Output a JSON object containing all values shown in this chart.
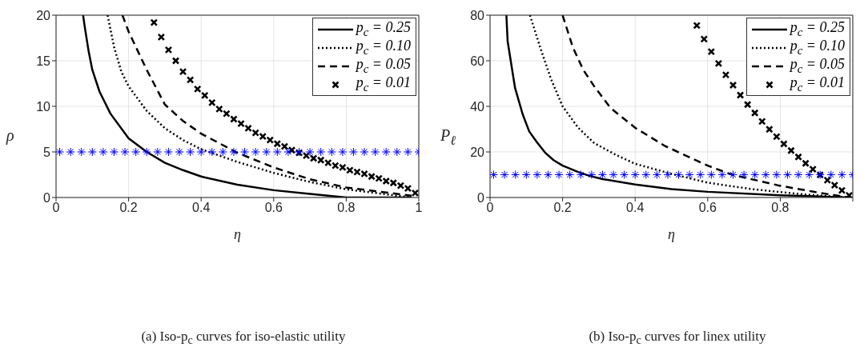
{
  "chart_data": [
    {
      "type": "line",
      "xlabel": "η",
      "ylabel": "ρ",
      "xlim": [
        0,
        1
      ],
      "ylim": [
        0,
        20
      ],
      "xticks": [
        0,
        0.2,
        0.4,
        0.6,
        0.8,
        1
      ],
      "yticks": [
        0,
        5,
        10,
        15,
        20
      ],
      "grid": true,
      "legend": "top right",
      "annotations": [
        "(a) Iso-p$_{c}$ curves for iso-elastic utility"
      ],
      "series": [
        {
          "name": "p$_{c}$ = 0.25",
          "color": "#000000",
          "line_style": "solid",
          "marker": "none",
          "x": [
            0.0745,
            0.08,
            0.09,
            0.1,
            0.12,
            0.15,
            0.2,
            0.25,
            0.3,
            0.35,
            0.4,
            0.5,
            0.6,
            0.7,
            0.8,
            0.98
          ],
          "values": [
            20,
            18.5,
            16,
            14,
            11.6,
            9.2,
            6.5,
            5,
            3.8,
            3,
            2.3,
            1.4,
            0.8,
            0.4,
            0,
            0
          ]
        },
        {
          "name": "p$_{c}$ = 0.10",
          "color": "#000000",
          "line_style": "dotted",
          "marker": "none",
          "x": [
            0.142,
            0.16,
            0.18,
            0.2,
            0.25,
            0.3,
            0.35,
            0.4,
            0.5,
            0.6,
            0.7,
            0.8,
            0.9,
            0.98
          ],
          "values": [
            20,
            16.5,
            13.8,
            12.2,
            9.5,
            7.6,
            6.3,
            5.3,
            3.9,
            2.7,
            1.7,
            0.9,
            0.4,
            0
          ]
        },
        {
          "name": "p$_{c}$ = 0.05",
          "color": "#000000",
          "line_style": "dashed",
          "marker": "none",
          "x": [
            0.183,
            0.2,
            0.25,
            0.3,
            0.35,
            0.4,
            0.5,
            0.6,
            0.7,
            0.8,
            0.9,
            0.98
          ],
          "values": [
            20,
            18.2,
            14,
            10.2,
            8.4,
            7,
            4.9,
            3.3,
            2,
            1.1,
            0.6,
            0.2
          ]
        },
        {
          "name": "p$_{c}$ = 0.01",
          "color": "#000000",
          "type": "scatter",
          "marker": "cross",
          "x": [
            0.27,
            0.29,
            0.31,
            0.33,
            0.35,
            0.37,
            0.39,
            0.41,
            0.43,
            0.45,
            0.47,
            0.49,
            0.51,
            0.53,
            0.55,
            0.57,
            0.59,
            0.61,
            0.63,
            0.65,
            0.67,
            0.69,
            0.71,
            0.73,
            0.75,
            0.77,
            0.79,
            0.81,
            0.83,
            0.85,
            0.87,
            0.89,
            0.91,
            0.93,
            0.95,
            0.97,
            0.99
          ],
          "values": [
            19.2,
            17.6,
            16.2,
            15,
            13.8,
            12.9,
            11.9,
            11.2,
            10.4,
            9.7,
            9.2,
            8.6,
            8.1,
            7.6,
            7.1,
            6.7,
            6.3,
            5.9,
            5.6,
            5.2,
            4.9,
            4.6,
            4.3,
            4.1,
            3.8,
            3.5,
            3.3,
            3,
            2.8,
            2.6,
            2.3,
            2.1,
            1.8,
            1.6,
            1.3,
            1,
            0.5
          ]
        },
        {
          "color": "#0000ff",
          "type": "scatter",
          "marker": "cross",
          "x": [
            0.01,
            0.04,
            0.07,
            0.1,
            0.13,
            0.16,
            0.19,
            0.22,
            0.25,
            0.28,
            0.31,
            0.34,
            0.37,
            0.4,
            0.43,
            0.46,
            0.49,
            0.52,
            0.55,
            0.58,
            0.61,
            0.64,
            0.67,
            0.7,
            0.73,
            0.76,
            0.79,
            0.82,
            0.85,
            0.88,
            0.91,
            0.94,
            0.97,
            1.0
          ],
          "values": [
            5,
            5,
            5,
            5,
            5,
            5,
            5,
            5,
            5,
            5,
            5,
            5,
            5,
            5,
            5,
            5,
            5,
            5,
            5,
            5,
            5,
            5,
            5,
            5,
            5,
            5,
            5,
            5,
            5,
            5,
            5,
            5,
            5,
            5
          ]
        }
      ]
    },
    {
      "type": "line",
      "xlabel": "η",
      "ylabel": "P$_{ℓ}$",
      "xlim": [
        0,
        1
      ],
      "ylim": [
        0,
        80
      ],
      "xticks": [
        0,
        0.2,
        0.4,
        0.6,
        0.8,
        {
          "value": 1,
          "label": null
        }
      ],
      "yticks": [
        0,
        20,
        40,
        60,
        80
      ],
      "grid": true,
      "legend": "top right",
      "annotations": [
        "(b) Iso-p$_{c}$ curves for linex utility"
      ],
      "series": [
        {
          "name": "p$_{c}$ = 0.25",
          "color": "#000000",
          "line_style": "solid",
          "marker": "none",
          "x": [
            0.045,
            0.0485,
            0.069,
            0.09,
            0.108,
            0.129,
            0.153,
            0.175,
            0.2,
            0.243,
            0.272,
            0.31,
            0.4,
            0.5,
            0.6,
            0.8,
            0.99
          ],
          "values": [
            80,
            68.5,
            48,
            36.5,
            29,
            24.3,
            19.5,
            16.4,
            14,
            11.2,
            9.6,
            8.1,
            5.7,
            3.7,
            2.5,
            1,
            0
          ]
        },
        {
          "name": "p$_{c}$ = 0.10",
          "color": "#000000",
          "line_style": "dotted",
          "marker": "none",
          "x": [
            0.11,
            0.138,
            0.168,
            0.2,
            0.243,
            0.287,
            0.347,
            0.4,
            0.5,
            0.6,
            0.72,
            0.87,
            0.99
          ],
          "values": [
            80,
            66,
            52,
            40,
            30.6,
            23.9,
            18.7,
            14.8,
            10.4,
            6.5,
            3.7,
            1.3,
            0
          ]
        },
        {
          "name": "p$_{c}$ = 0.05",
          "color": "#000000",
          "line_style": "dashed",
          "marker": "none",
          "x": [
            0.2,
            0.228,
            0.257,
            0.287,
            0.332,
            0.4,
            0.481,
            0.6,
            0.667,
            0.795,
            0.907,
            0.99
          ],
          "values": [
            80,
            66,
            56,
            48.8,
            39.3,
            30.6,
            22.7,
            14,
            10,
            5.3,
            2.1,
            0
          ]
        },
        {
          "name": "p$_{c}$ = 0.01",
          "color": "#000000",
          "type": "scatter",
          "marker": "cross",
          "x": [
            0.57,
            0.59,
            0.61,
            0.63,
            0.65,
            0.67,
            0.69,
            0.71,
            0.73,
            0.75,
            0.77,
            0.79,
            0.81,
            0.83,
            0.85,
            0.87,
            0.89,
            0.91,
            0.93,
            0.95,
            0.97,
            0.99
          ],
          "values": [
            75.5,
            69.5,
            64,
            58.8,
            53.8,
            49.3,
            44.9,
            40.8,
            37.1,
            33.4,
            29.9,
            26.7,
            23.5,
            20.6,
            17.8,
            15,
            12.4,
            9.9,
            7.6,
            5.4,
            3.1,
            0.9
          ]
        },
        {
          "color": "#0000ff",
          "type": "scatter",
          "marker": "cross",
          "x": [
            0.01,
            0.04,
            0.07,
            0.1,
            0.13,
            0.16,
            0.19,
            0.22,
            0.25,
            0.28,
            0.31,
            0.34,
            0.37,
            0.4,
            0.43,
            0.46,
            0.49,
            0.52,
            0.55,
            0.58,
            0.61,
            0.64,
            0.67,
            0.7,
            0.73,
            0.76,
            0.79,
            0.82,
            0.85,
            0.88,
            0.91,
            0.94,
            0.97,
            1.0
          ],
          "values": [
            10,
            10,
            10,
            10,
            10,
            10,
            10,
            10,
            10,
            10,
            10,
            10,
            10,
            10,
            10,
            10,
            10,
            10,
            10,
            10,
            10,
            10,
            10,
            10,
            10,
            10,
            10,
            10,
            10,
            10,
            10,
            10,
            10,
            10
          ]
        }
      ]
    }
  ]
}
